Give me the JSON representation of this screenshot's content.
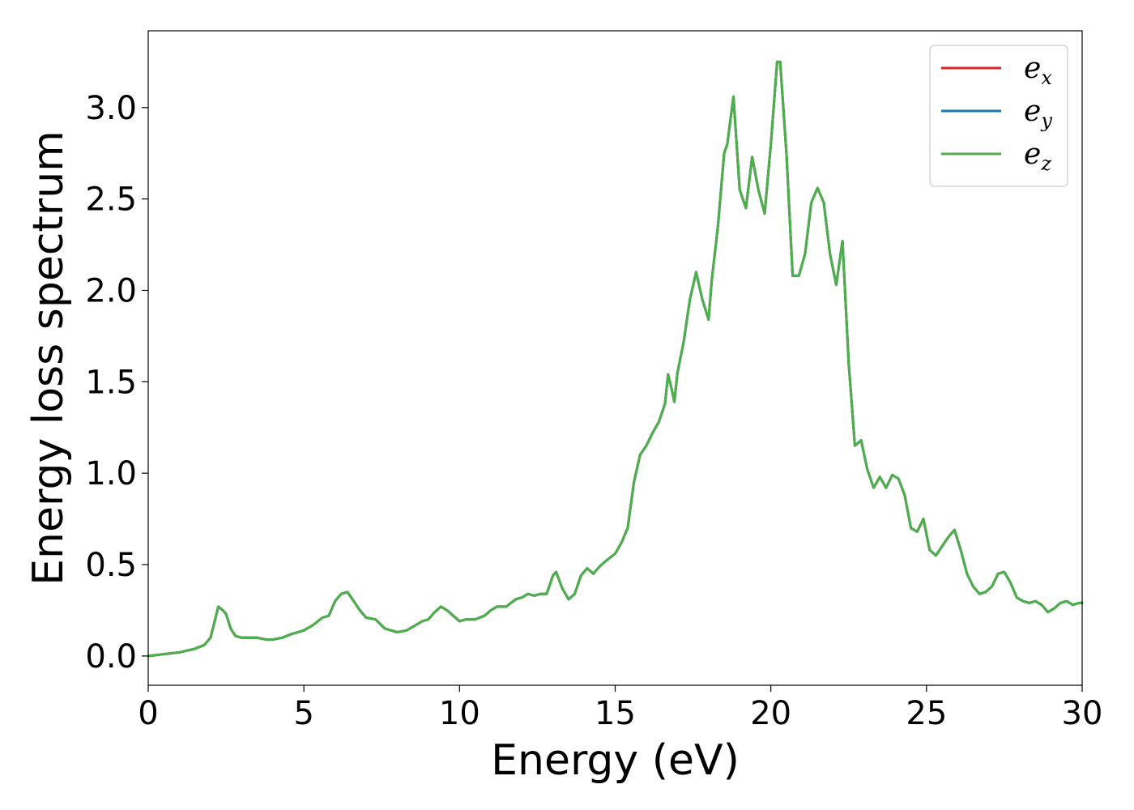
{
  "chart_data": {
    "type": "line",
    "title": "",
    "xlabel": "Energy (eV)",
    "ylabel": "Energy loss spectrum",
    "xlim": [
      0,
      30
    ],
    "ylim": [
      -0.16,
      3.42
    ],
    "xticks": [
      0,
      5,
      10,
      15,
      20,
      25,
      30
    ],
    "xtick_labels": [
      "0",
      "5",
      "10",
      "15",
      "20",
      "25",
      "30"
    ],
    "yticks": [
      0.0,
      0.5,
      1.0,
      1.5,
      2.0,
      2.5,
      3.0
    ],
    "ytick_labels": [
      "0.0",
      "0.5",
      "1.0",
      "1.5",
      "2.0",
      "2.5",
      "3.0"
    ],
    "grid": false,
    "legend_position": "upper right",
    "legend": [
      {
        "base": "e",
        "sub": "x",
        "color": "#d62728"
      },
      {
        "base": "e",
        "sub": "y",
        "color": "#1f77b4"
      },
      {
        "base": "e",
        "sub": "z",
        "color": "#4daf4a"
      }
    ],
    "x": [
      0,
      0.5,
      1.0,
      1.5,
      1.8,
      2.0,
      2.15,
      2.25,
      2.4,
      2.5,
      2.65,
      2.8,
      3.0,
      3.2,
      3.5,
      3.8,
      4.0,
      4.3,
      4.6,
      5.0,
      5.3,
      5.6,
      5.8,
      6.0,
      6.2,
      6.4,
      6.6,
      6.8,
      7.0,
      7.3,
      7.6,
      7.8,
      8.0,
      8.3,
      8.6,
      8.8,
      9.0,
      9.2,
      9.4,
      9.6,
      9.8,
      10.0,
      10.2,
      10.5,
      10.8,
      11.0,
      11.2,
      11.5,
      11.8,
      12.0,
      12.2,
      12.4,
      12.6,
      12.8,
      13.0,
      13.1,
      13.3,
      13.5,
      13.7,
      13.9,
      14.1,
      14.3,
      14.5,
      14.7,
      15.0,
      15.2,
      15.4,
      15.6,
      15.8,
      16.0,
      16.2,
      16.4,
      16.6,
      16.7,
      16.8,
      16.9,
      17.0,
      17.2,
      17.4,
      17.6,
      17.8,
      18.0,
      18.1,
      18.3,
      18.5,
      18.6,
      18.8,
      19.0,
      19.2,
      19.4,
      19.6,
      19.8,
      20.0,
      20.2,
      20.3,
      20.5,
      20.7,
      20.9,
      21.1,
      21.3,
      21.5,
      21.7,
      21.9,
      22.1,
      22.3,
      22.5,
      22.7,
      22.9,
      23.1,
      23.3,
      23.5,
      23.7,
      23.9,
      24.1,
      24.3,
      24.5,
      24.7,
      24.9,
      25.1,
      25.3,
      25.5,
      25.7,
      25.9,
      26.1,
      26.3,
      26.5,
      26.7,
      26.9,
      27.1,
      27.3,
      27.5,
      27.7,
      27.9,
      28.1,
      28.3,
      28.5,
      28.7,
      28.9,
      29.1,
      29.3,
      29.5,
      29.7,
      29.9,
      30.0
    ],
    "series": [
      {
        "name": "e_x",
        "color": "#d62728",
        "y": [
          0.0,
          0.01,
          0.02,
          0.04,
          0.06,
          0.1,
          0.2,
          0.27,
          0.25,
          0.23,
          0.15,
          0.11,
          0.1,
          0.1,
          0.1,
          0.09,
          0.09,
          0.1,
          0.12,
          0.14,
          0.17,
          0.21,
          0.22,
          0.3,
          0.34,
          0.35,
          0.3,
          0.25,
          0.21,
          0.2,
          0.15,
          0.14,
          0.13,
          0.14,
          0.17,
          0.19,
          0.2,
          0.24,
          0.27,
          0.25,
          0.22,
          0.19,
          0.2,
          0.2,
          0.22,
          0.25,
          0.27,
          0.27,
          0.31,
          0.32,
          0.34,
          0.33,
          0.34,
          0.34,
          0.44,
          0.46,
          0.37,
          0.31,
          0.34,
          0.44,
          0.48,
          0.45,
          0.49,
          0.52,
          0.56,
          0.62,
          0.7,
          0.95,
          1.1,
          1.15,
          1.22,
          1.28,
          1.38,
          1.54,
          1.47,
          1.39,
          1.55,
          1.72,
          1.95,
          2.1,
          1.95,
          1.84,
          2.05,
          2.35,
          2.75,
          2.8,
          3.06,
          2.55,
          2.45,
          2.73,
          2.55,
          2.42,
          2.8,
          3.25,
          3.25,
          2.75,
          2.08,
          2.08,
          2.2,
          2.48,
          2.56,
          2.48,
          2.2,
          2.03,
          2.27,
          1.6,
          1.15,
          1.18,
          1.02,
          0.92,
          0.98,
          0.92,
          0.99,
          0.97,
          0.88,
          0.7,
          0.68,
          0.75,
          0.58,
          0.55,
          0.6,
          0.65,
          0.69,
          0.58,
          0.45,
          0.38,
          0.34,
          0.35,
          0.38,
          0.45,
          0.46,
          0.4,
          0.32,
          0.3,
          0.29,
          0.3,
          0.28,
          0.24,
          0.26,
          0.29,
          0.3,
          0.28,
          0.29,
          0.29
        ]
      },
      {
        "name": "e_y",
        "color": "#1f77b4",
        "y": [
          0.0,
          0.01,
          0.02,
          0.04,
          0.06,
          0.1,
          0.2,
          0.27,
          0.25,
          0.23,
          0.15,
          0.11,
          0.1,
          0.1,
          0.1,
          0.09,
          0.09,
          0.1,
          0.12,
          0.14,
          0.17,
          0.21,
          0.22,
          0.3,
          0.34,
          0.35,
          0.3,
          0.25,
          0.21,
          0.2,
          0.15,
          0.14,
          0.13,
          0.14,
          0.17,
          0.19,
          0.2,
          0.24,
          0.27,
          0.25,
          0.22,
          0.19,
          0.2,
          0.2,
          0.22,
          0.25,
          0.27,
          0.27,
          0.31,
          0.32,
          0.34,
          0.33,
          0.34,
          0.34,
          0.44,
          0.46,
          0.37,
          0.31,
          0.34,
          0.44,
          0.48,
          0.45,
          0.49,
          0.52,
          0.56,
          0.62,
          0.7,
          0.95,
          1.1,
          1.15,
          1.22,
          1.28,
          1.38,
          1.54,
          1.47,
          1.39,
          1.55,
          1.72,
          1.95,
          2.1,
          1.95,
          1.84,
          2.05,
          2.35,
          2.75,
          2.8,
          3.06,
          2.55,
          2.45,
          2.73,
          2.55,
          2.42,
          2.8,
          3.25,
          3.25,
          2.75,
          2.08,
          2.08,
          2.2,
          2.48,
          2.56,
          2.48,
          2.2,
          2.03,
          2.27,
          1.6,
          1.15,
          1.18,
          1.02,
          0.92,
          0.98,
          0.92,
          0.99,
          0.97,
          0.88,
          0.7,
          0.68,
          0.75,
          0.58,
          0.55,
          0.6,
          0.65,
          0.69,
          0.58,
          0.45,
          0.38,
          0.34,
          0.35,
          0.38,
          0.45,
          0.46,
          0.4,
          0.32,
          0.3,
          0.29,
          0.3,
          0.28,
          0.24,
          0.26,
          0.29,
          0.3,
          0.28,
          0.29,
          0.29
        ]
      },
      {
        "name": "e_z",
        "color": "#4daf4a",
        "y": [
          0.0,
          0.01,
          0.02,
          0.04,
          0.06,
          0.1,
          0.2,
          0.27,
          0.25,
          0.23,
          0.15,
          0.11,
          0.1,
          0.1,
          0.1,
          0.09,
          0.09,
          0.1,
          0.12,
          0.14,
          0.17,
          0.21,
          0.22,
          0.3,
          0.34,
          0.35,
          0.3,
          0.25,
          0.21,
          0.2,
          0.15,
          0.14,
          0.13,
          0.14,
          0.17,
          0.19,
          0.2,
          0.24,
          0.27,
          0.25,
          0.22,
          0.19,
          0.2,
          0.2,
          0.22,
          0.25,
          0.27,
          0.27,
          0.31,
          0.32,
          0.34,
          0.33,
          0.34,
          0.34,
          0.44,
          0.46,
          0.37,
          0.31,
          0.34,
          0.44,
          0.48,
          0.45,
          0.49,
          0.52,
          0.56,
          0.62,
          0.7,
          0.95,
          1.1,
          1.15,
          1.22,
          1.28,
          1.38,
          1.54,
          1.47,
          1.39,
          1.55,
          1.72,
          1.95,
          2.1,
          1.95,
          1.84,
          2.05,
          2.35,
          2.75,
          2.8,
          3.06,
          2.55,
          2.45,
          2.73,
          2.55,
          2.42,
          2.8,
          3.25,
          3.25,
          2.75,
          2.08,
          2.08,
          2.2,
          2.48,
          2.56,
          2.48,
          2.2,
          2.03,
          2.27,
          1.6,
          1.15,
          1.18,
          1.02,
          0.92,
          0.98,
          0.92,
          0.99,
          0.97,
          0.88,
          0.7,
          0.68,
          0.75,
          0.58,
          0.55,
          0.6,
          0.65,
          0.69,
          0.58,
          0.45,
          0.38,
          0.34,
          0.35,
          0.38,
          0.45,
          0.46,
          0.4,
          0.32,
          0.3,
          0.29,
          0.3,
          0.28,
          0.24,
          0.26,
          0.29,
          0.3,
          0.28,
          0.29,
          0.29
        ]
      }
    ]
  }
}
